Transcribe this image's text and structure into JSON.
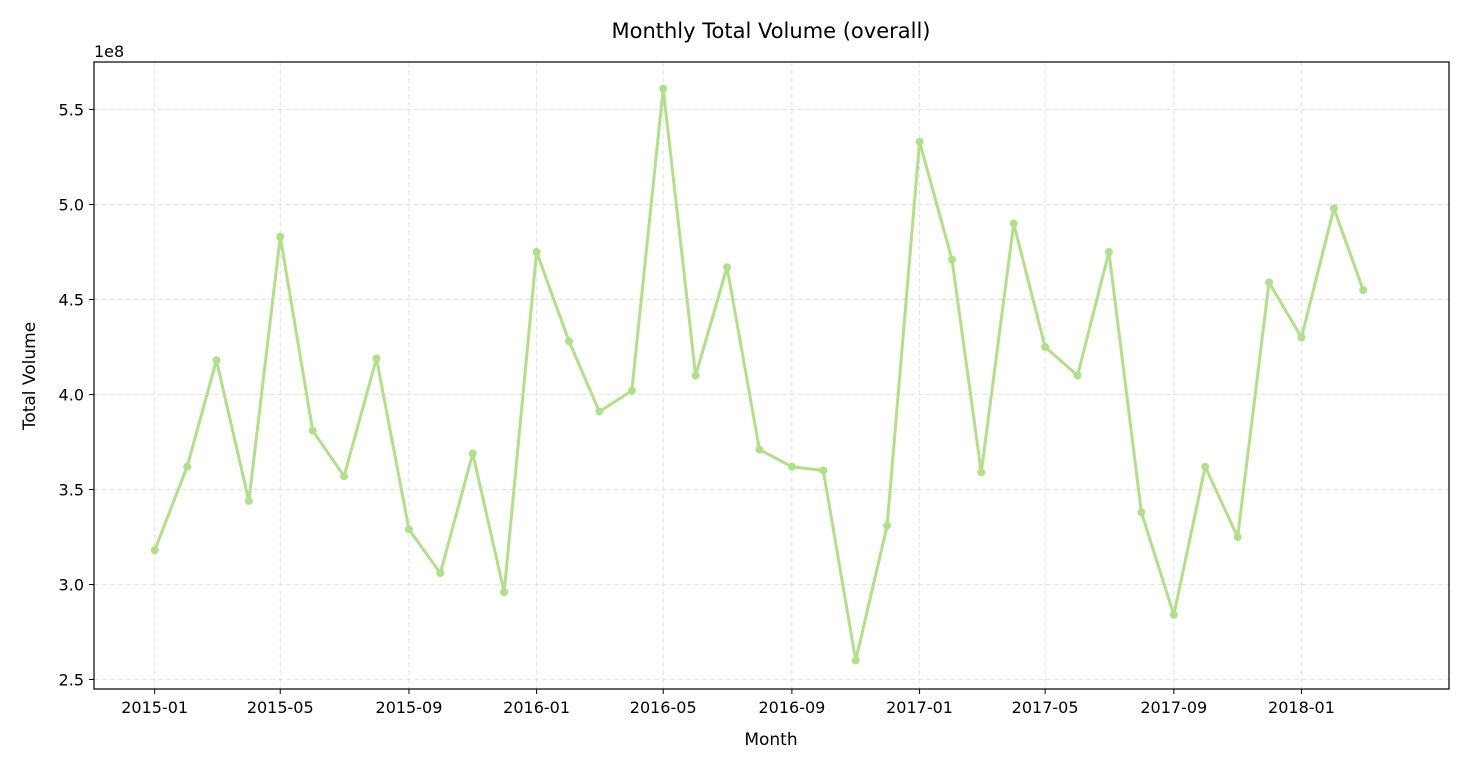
{
  "chart_data": {
    "type": "line",
    "title": "Monthly Total Volume (overall)",
    "xlabel": "Month",
    "ylabel": "Total Volume",
    "y_multiplier_label": "1e8",
    "y_scale": 100000000,
    "ylim": [
      2.45,
      5.75
    ],
    "xlim": [
      "2014-11-04",
      "2018-05-22"
    ],
    "grid": true,
    "legend": "none",
    "line_color": "#b2df8a",
    "x_ticks": [
      "2015-01",
      "2015-05",
      "2015-09",
      "2016-01",
      "2016-05",
      "2016-09",
      "2017-01",
      "2017-05",
      "2017-09",
      "2018-01"
    ],
    "y_ticks": [
      "2.5",
      "3.0",
      "3.5",
      "4.0",
      "4.5",
      "5.0",
      "5.5"
    ],
    "x": [
      "2015-01",
      "2015-02",
      "2015-03",
      "2015-04",
      "2015-05",
      "2015-06",
      "2015-07",
      "2015-08",
      "2015-09",
      "2015-10",
      "2015-11",
      "2015-12",
      "2016-01",
      "2016-02",
      "2016-03",
      "2016-04",
      "2016-05",
      "2016-06",
      "2016-07",
      "2016-08",
      "2016-09",
      "2016-10",
      "2016-11",
      "2016-12",
      "2017-01",
      "2017-02",
      "2017-03",
      "2017-04",
      "2017-05",
      "2017-06",
      "2017-07",
      "2017-08",
      "2017-09",
      "2017-10",
      "2017-11",
      "2017-12",
      "2018-01",
      "2018-02",
      "2018-03"
    ],
    "series": [
      {
        "values": [
          3.18,
          3.62,
          4.18,
          3.44,
          4.83,
          3.81,
          3.57,
          4.19,
          3.29,
          3.06,
          3.69,
          2.96,
          4.75,
          4.28,
          3.91,
          4.02,
          5.61,
          4.1,
          4.67,
          3.71,
          3.62,
          3.6,
          2.6,
          3.31,
          5.33,
          4.71,
          3.59,
          4.9,
          4.25,
          4.1,
          4.75,
          3.38,
          2.84,
          3.62,
          3.25,
          4.59,
          4.3,
          4.98,
          4.55
        ]
      }
    ]
  }
}
